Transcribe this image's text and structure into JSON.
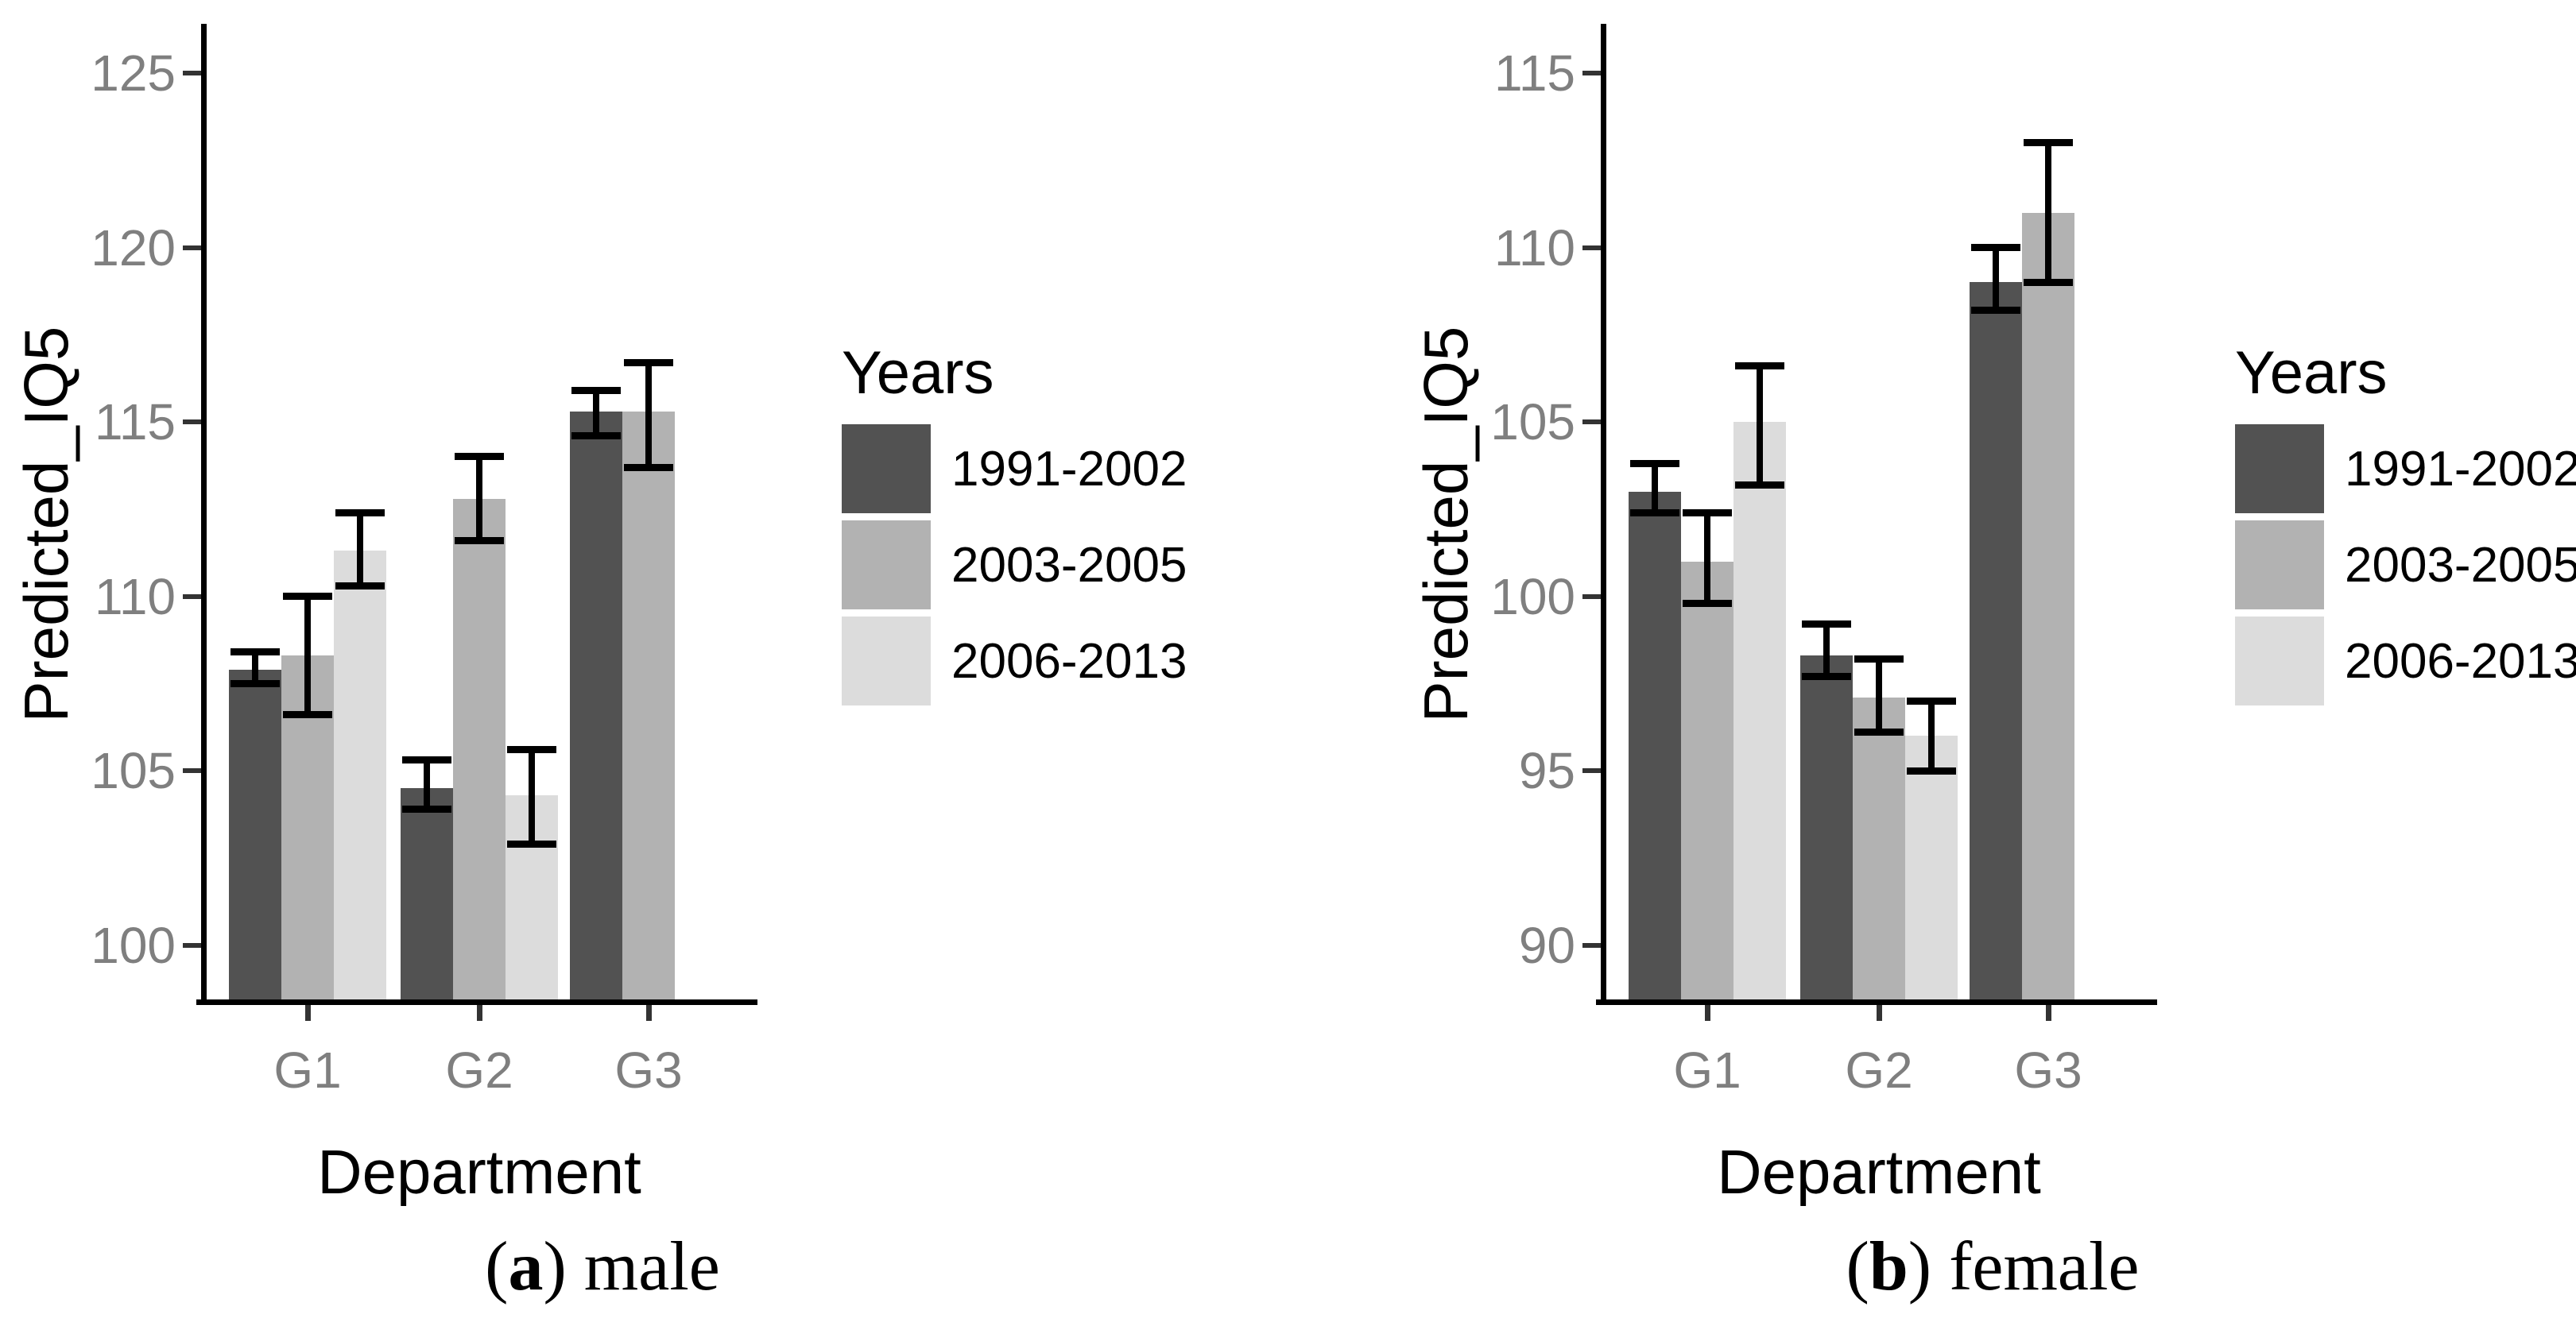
{
  "figure": {
    "captions": {
      "a": {
        "open": "(",
        "letter": "a",
        "close": ") ",
        "text": "male"
      },
      "b": {
        "open": "(",
        "letter": "b",
        "close": ") ",
        "text": "female"
      }
    },
    "colors": {
      "bar_dark": "#525252",
      "bar_mid": "#b2b2b2",
      "bar_light": "#dcdcdc",
      "axis_line": "#000000",
      "tick_mark": "#333333",
      "tick_label": "#7f7f7f",
      "error_bar": "#000000"
    }
  },
  "legend": {
    "title": "Years",
    "entries": [
      {
        "label": "1991-2002",
        "color": "#525252"
      },
      {
        "label": "2003-2005",
        "color": "#b2b2b2"
      },
      {
        "label": "2006-2013",
        "color": "#dcdcdc"
      }
    ]
  },
  "chart_data": [
    {
      "id": "male",
      "type": "bar",
      "title": "(a) male",
      "xlabel": "Department",
      "ylabel": "Predicted_IQ5",
      "categories": [
        "G1",
        "G2",
        "G3"
      ],
      "y_ticks": [
        100,
        105,
        110,
        115,
        120,
        125
      ],
      "ylim": [
        98.4,
        126.4
      ],
      "grid": false,
      "legend_position": "right",
      "error_bars": true,
      "series": [
        {
          "name": "1991-2002",
          "values": [
            107.9,
            104.5,
            115.3
          ],
          "err_low": [
            107.5,
            103.9,
            114.6
          ],
          "err_high": [
            108.4,
            105.3,
            115.9
          ]
        },
        {
          "name": "2003-2005",
          "values": [
            108.3,
            112.8,
            115.3
          ],
          "err_low": [
            106.6,
            111.6,
            113.7
          ],
          "err_high": [
            110.0,
            114.0,
            116.7
          ]
        },
        {
          "name": "2006-2013",
          "values": [
            111.3,
            104.3,
            null
          ],
          "err_low": [
            110.3,
            102.9,
            null
          ],
          "err_high": [
            112.4,
            105.6,
            null
          ]
        }
      ]
    },
    {
      "id": "female",
      "type": "bar",
      "title": "(b) female",
      "xlabel": "Department",
      "ylabel": "Predicted_IQ5",
      "categories": [
        "G1",
        "G2",
        "G3"
      ],
      "y_ticks": [
        90,
        95,
        100,
        105,
        110,
        115
      ],
      "ylim": [
        88.4,
        116.4
      ],
      "grid": false,
      "legend_position": "right",
      "error_bars": true,
      "series": [
        {
          "name": "1991-2002",
          "values": [
            103.0,
            98.3,
            109.0
          ],
          "err_low": [
            102.4,
            97.7,
            108.2
          ],
          "err_high": [
            103.8,
            99.2,
            110.0
          ]
        },
        {
          "name": "2003-2005",
          "values": [
            101.0,
            97.1,
            111.0
          ],
          "err_low": [
            99.8,
            96.1,
            109.0
          ],
          "err_high": [
            102.4,
            98.2,
            113.0
          ]
        },
        {
          "name": "2006-2013",
          "values": [
            105.0,
            96.0,
            null
          ],
          "err_low": [
            103.2,
            95.0,
            null
          ],
          "err_high": [
            106.6,
            97.0,
            null
          ]
        }
      ]
    }
  ]
}
